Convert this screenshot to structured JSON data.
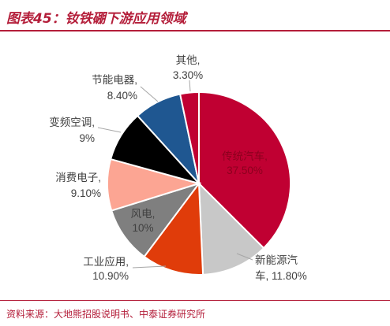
{
  "header": {
    "title": "图表45：钕铁硼下游应用领域"
  },
  "chart_data": {
    "type": "pie",
    "title": "",
    "start_angle_deg": 0,
    "direction": "clockwise",
    "slices": [
      {
        "name": "传统汽车",
        "label": "传统汽车,",
        "value_label": "37.50%",
        "value": 37.5,
        "color": "#c00032",
        "label_inside": true
      },
      {
        "name": "新能源汽车",
        "label": "新能源汽",
        "label2": "车, 11.80%",
        "value_label": "",
        "value": 11.8,
        "color": "#c8c8c8",
        "label_inside": false
      },
      {
        "name": "工业应用",
        "label": "工业应用,",
        "value_label": "10.90%",
        "value": 10.9,
        "color": "#e03c0a",
        "label_inside": false
      },
      {
        "name": "风电",
        "label": "风电,",
        "value_label": "10%",
        "value": 10,
        "color": "#7f7f7f",
        "label_inside": true
      },
      {
        "name": "消费电子",
        "label": "消费电子,",
        "value_label": "9.10%",
        "value": 9.1,
        "color": "#fca593",
        "label_inside": false
      },
      {
        "name": "变频空调",
        "label": "变频空调,",
        "value_label": "9%",
        "value": 9,
        "color": "#000000",
        "label_inside": false
      },
      {
        "name": "节能电器",
        "label": "节能电器,",
        "value_label": "8.40%",
        "value": 8.4,
        "color": "#1f5791",
        "label_inside": false
      },
      {
        "name": "其他",
        "label": "其他,",
        "value_label": "3.30%",
        "value": 3.3,
        "color": "#c00032",
        "label_inside": false
      }
    ]
  },
  "colors": {
    "accent": "#b41e3a",
    "label_text": "#404040",
    "leader_line": "#a6a6a6"
  },
  "footer": {
    "source": "资料来源：大地熊招股说明书、中泰证券研究所"
  }
}
